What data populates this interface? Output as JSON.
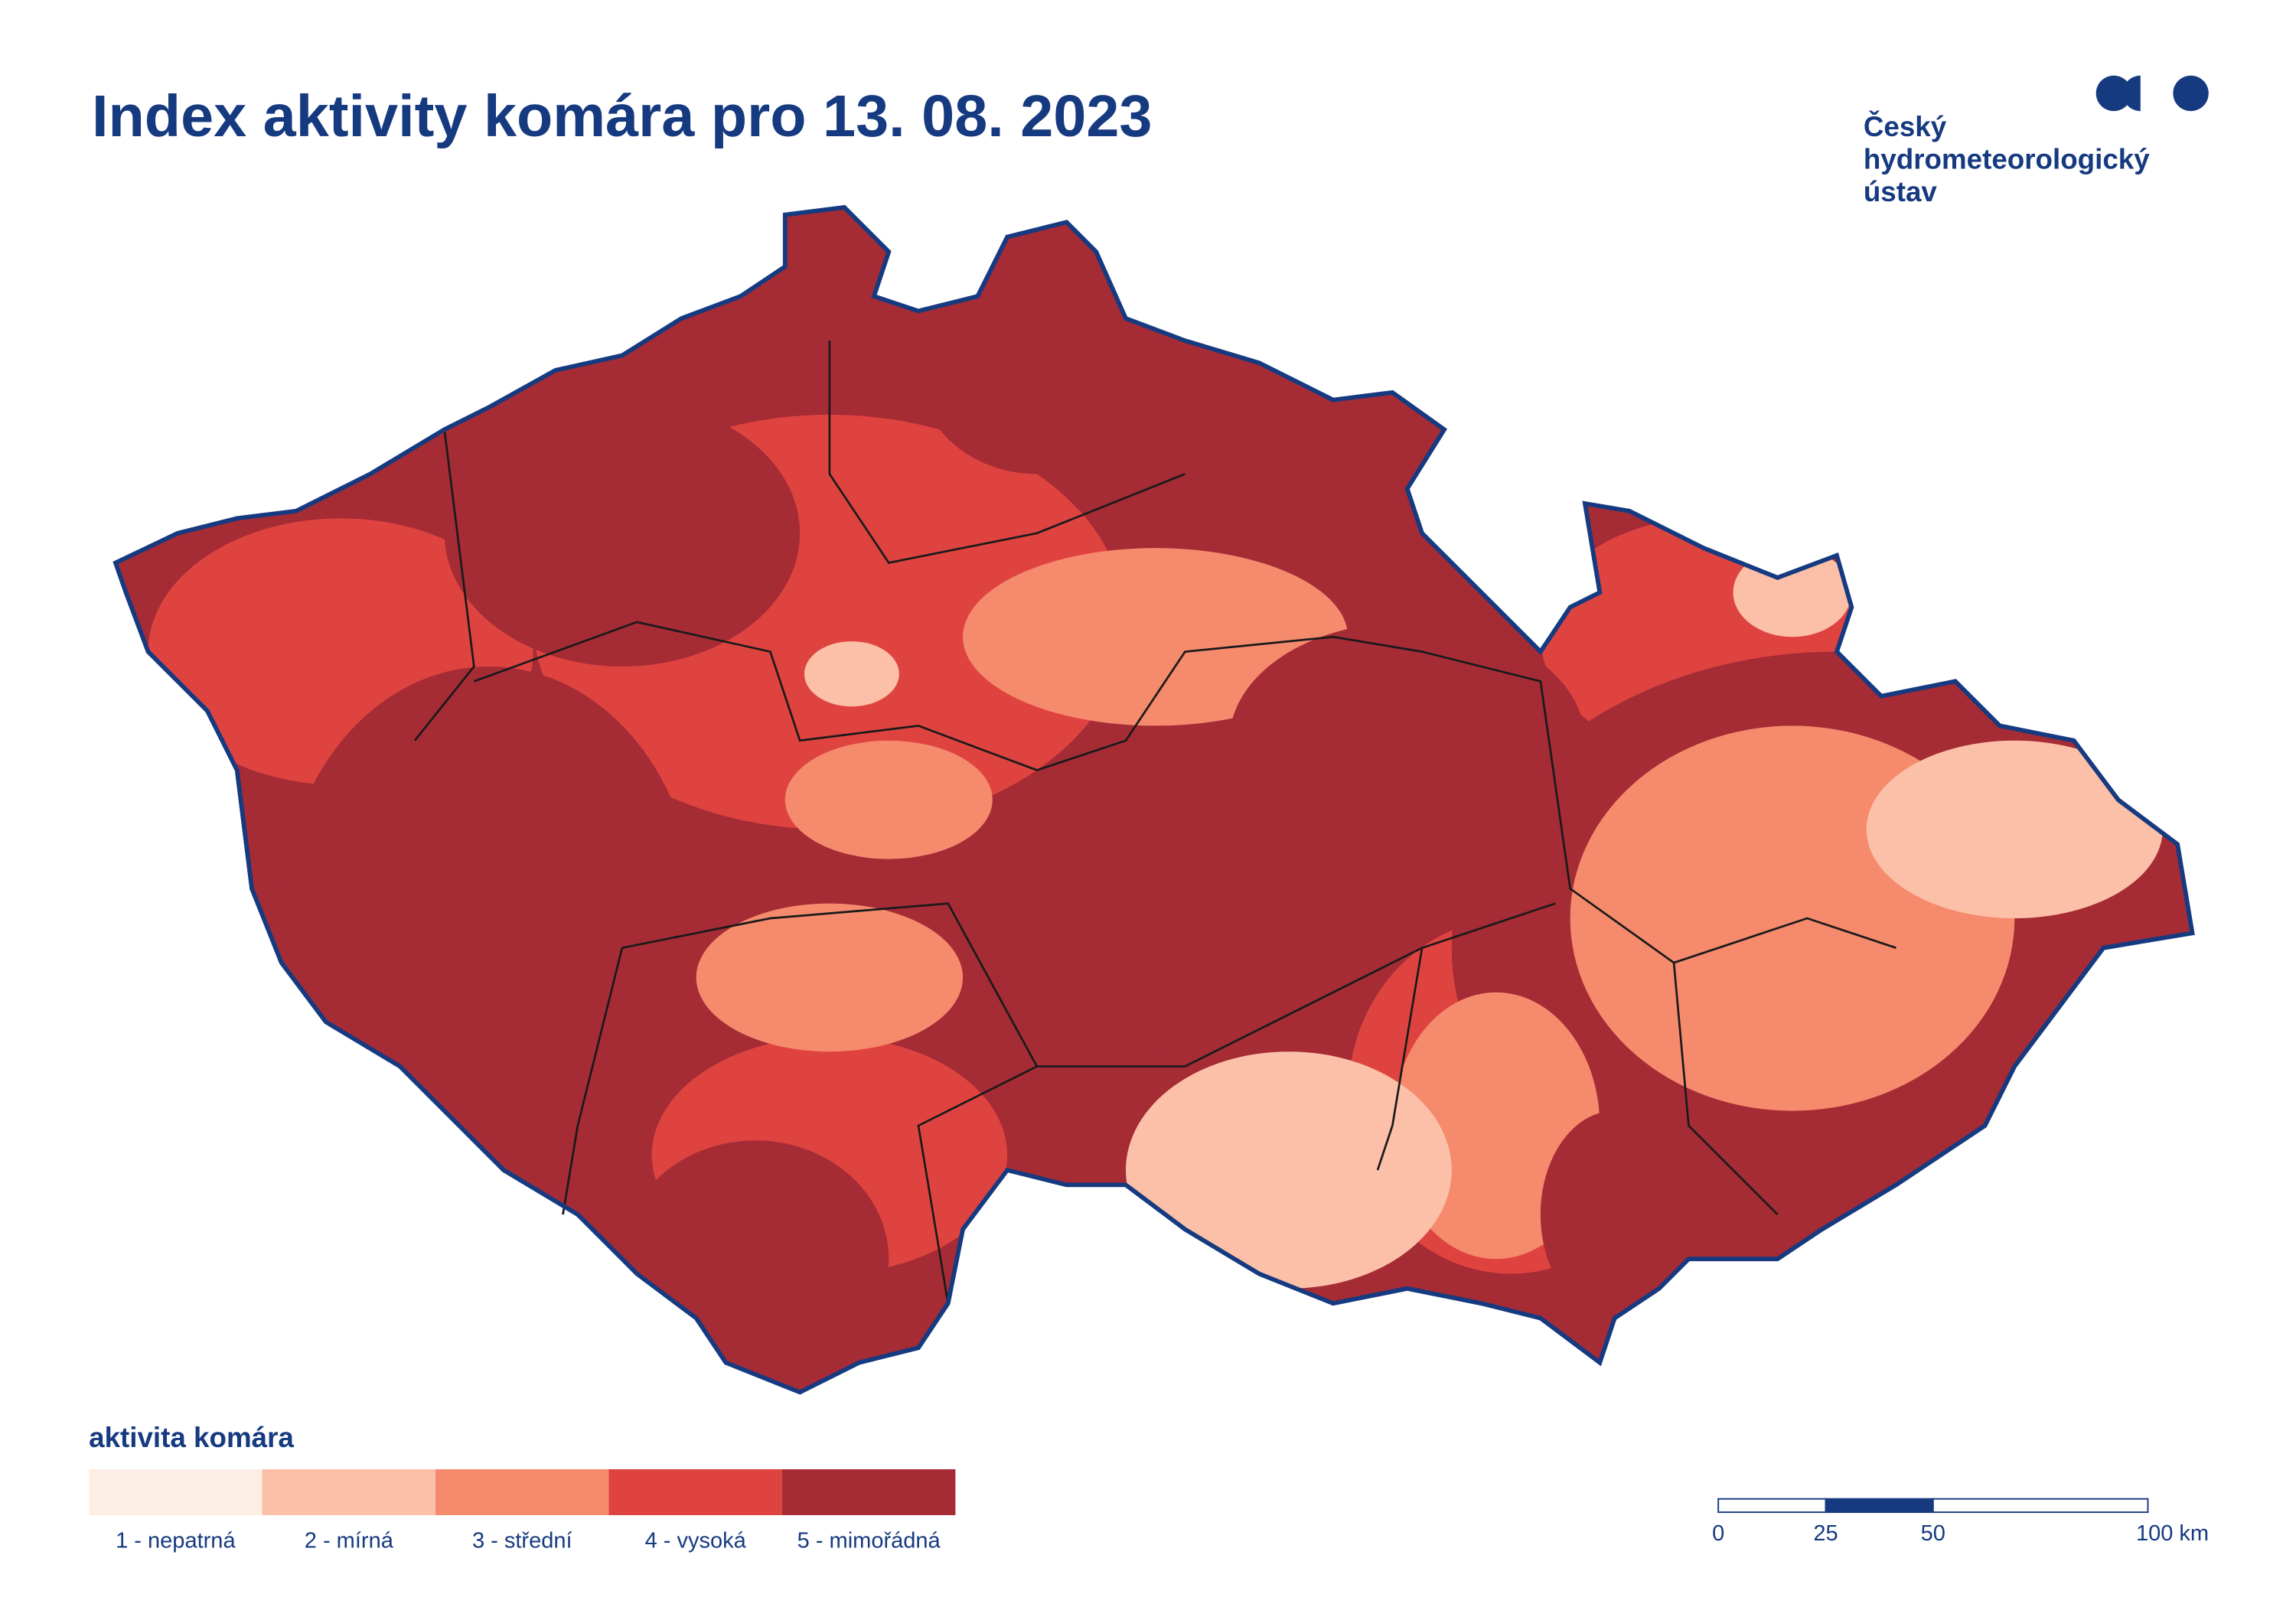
{
  "title": "Index aktivity komára pro 13. 08. 2023",
  "logo": {
    "lines": [
      "Český",
      "hydrometeorologický",
      "ústav"
    ]
  },
  "legend": {
    "title": "aktivita komára",
    "items": [
      {
        "label": "1 - nepatrná",
        "color": "#fdeee5"
      },
      {
        "label": "2 - mírná",
        "color": "#fbc0a7"
      },
      {
        "label": "3 - střední",
        "color": "#f58a6d"
      },
      {
        "label": "4 - vysoká",
        "color": "#df4340"
      },
      {
        "label": "5 - mimořádná",
        "color": "#a52b35"
      }
    ]
  },
  "scale_bar": {
    "ticks": [
      {
        "value": 0,
        "label": "0"
      },
      {
        "value": 25,
        "label": "25"
      },
      {
        "value": 50,
        "label": "50"
      },
      {
        "value": 100,
        "label": "100 km"
      }
    ]
  }
}
